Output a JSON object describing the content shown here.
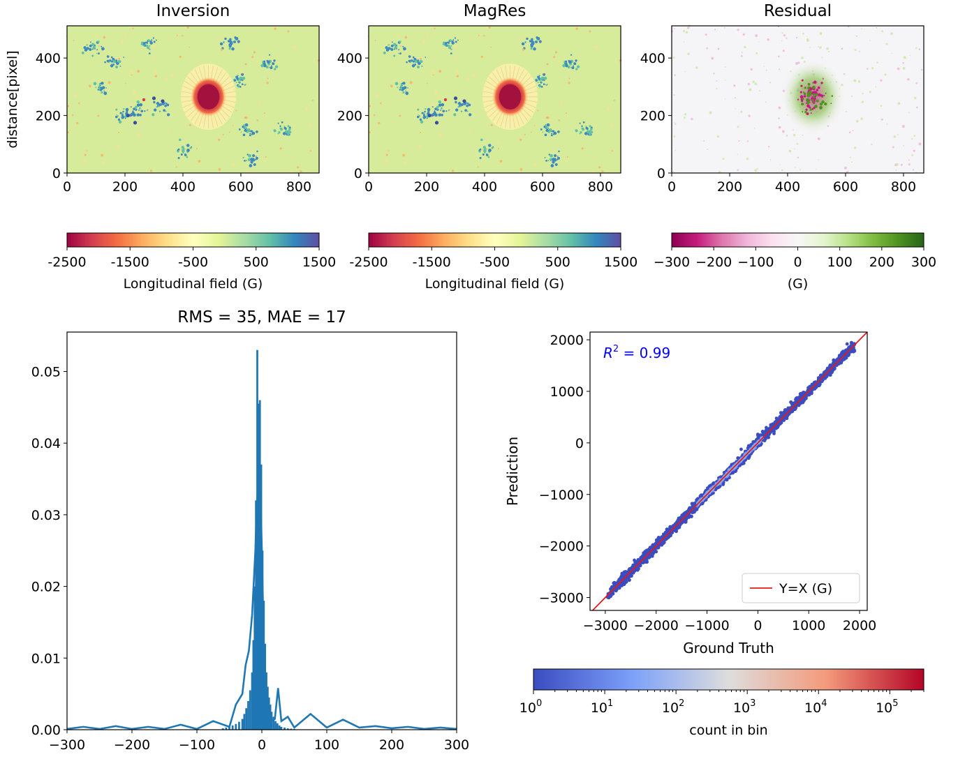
{
  "chart_data": [
    {
      "type": "heatmap",
      "title": "Inversion",
      "ylabel": "distance[pixel]",
      "xlim": [
        0,
        870
      ],
      "ylim": [
        0,
        512
      ],
      "xticks": [
        0,
        200,
        400,
        600,
        800
      ],
      "yticks": [
        0,
        200,
        400
      ],
      "colormap": "Spectral",
      "colorbar": {
        "label": "Longitudinal field (G)",
        "range": [
          -2500,
          1500
        ],
        "ticks": [
          "-2500",
          "-1500",
          "-500",
          "500",
          "1500"
        ]
      }
    },
    {
      "type": "heatmap",
      "title": "MagRes",
      "xlim": [
        0,
        870
      ],
      "ylim": [
        0,
        512
      ],
      "xticks": [
        0,
        200,
        400,
        600,
        800
      ],
      "yticks": [
        0,
        200,
        400
      ],
      "colormap": "Spectral",
      "colorbar": {
        "label": "Longitudinal field (G)",
        "range": [
          -2500,
          1500
        ],
        "ticks": [
          "-2500",
          "-1500",
          "-500",
          "500",
          "1500"
        ]
      }
    },
    {
      "type": "heatmap",
      "title": "Residual",
      "xlim": [
        0,
        870
      ],
      "ylim": [
        0,
        512
      ],
      "xticks": [
        0,
        200,
        400,
        600,
        800
      ],
      "yticks": [
        0,
        200,
        400
      ],
      "colormap": "PiYG",
      "colorbar": {
        "label": "(G)",
        "range": [
          -300,
          300
        ],
        "ticks": [
          "−300",
          "−200",
          "−100",
          "0",
          "100",
          "200",
          "300"
        ]
      }
    },
    {
      "type": "bar",
      "title": "RMS = 35, MAE = 17",
      "xlim": [
        -300,
        300
      ],
      "ylim": [
        0,
        0.0555
      ],
      "xticks": [
        -300,
        -200,
        -100,
        0,
        100,
        200,
        300
      ],
      "xtick_labels": [
        "−300",
        "−200",
        "−100",
        "0",
        "100",
        "200",
        "300"
      ],
      "yticks": [
        0.0,
        0.01,
        0.02,
        0.03,
        0.04,
        0.05
      ],
      "ytick_labels": [
        "0.00",
        "0.01",
        "0.02",
        "0.03",
        "0.04",
        "0.05"
      ],
      "color": "#1f77b4",
      "histogram": {
        "bin_centers": [
          -60,
          -55,
          -50,
          -45,
          -40,
          -35,
          -30,
          -27,
          -24,
          -21,
          -18,
          -15,
          -13,
          -11,
          -9,
          -7,
          -5,
          -3,
          -1,
          1,
          3,
          5,
          7,
          9,
          11,
          13,
          15,
          18,
          21,
          24,
          27,
          30,
          35,
          40,
          45,
          50
        ],
        "values": [
          0.0002,
          0.0003,
          0.0004,
          0.0006,
          0.0008,
          0.0011,
          0.0015,
          0.0022,
          0.003,
          0.004,
          0.0055,
          0.008,
          0.0125,
          0.02,
          0.032,
          0.053,
          0.0455,
          0.046,
          0.037,
          0.025,
          0.018,
          0.012,
          0.008,
          0.006,
          0.0045,
          0.0035,
          0.0025,
          0.0018,
          0.0012,
          0.0009,
          0.0006,
          0.0004,
          0.0003,
          0.0002,
          0.00015,
          0.0001
        ]
      },
      "line": {
        "x": [
          -300,
          -275,
          -250,
          -225,
          -200,
          -175,
          -150,
          -125,
          -100,
          -75,
          -50,
          -40,
          -30,
          -25,
          -20,
          -15,
          -10,
          -8,
          -5,
          -3,
          0,
          3,
          5,
          8,
          10,
          15,
          20,
          25,
          30,
          40,
          50,
          75,
          100,
          125,
          150,
          175,
          200,
          225,
          250,
          275,
          300
        ],
        "y": [
          0.0001,
          0.0004,
          0.0001,
          0.0005,
          0.0001,
          0.0004,
          0.0001,
          0.0007,
          0.0001,
          0.0012,
          0.0004,
          0.0035,
          0.005,
          0.009,
          0.011,
          0.016,
          0.025,
          0.031,
          0.036,
          0.037,
          0.025,
          0.012,
          0.006,
          0.004,
          0.0015,
          0.0012,
          0.0015,
          0.0058,
          0.0012,
          0.0018,
          0.0003,
          0.0022,
          0.0003,
          0.0014,
          0.0003,
          0.0005,
          0.0002,
          0.0004,
          0.0001,
          0.0003,
          0.0001
        ]
      }
    },
    {
      "type": "scatter",
      "xlabel": "Ground Truth",
      "ylabel": "Prediction",
      "xlim": [
        -3300,
        2150
      ],
      "ylim": [
        -3250,
        2150
      ],
      "xticks": [
        -3000,
        -2000,
        -1000,
        0,
        1000,
        2000
      ],
      "xtick_labels": [
        "−3000",
        "−2000",
        "−1000",
        "0",
        "1000",
        "2000"
      ],
      "yticks": [
        -3000,
        -2000,
        -1000,
        0,
        1000,
        2000
      ],
      "ytick_labels": [
        "−3000",
        "−2000",
        "−1000",
        "0",
        "1000",
        "2000"
      ],
      "annotation": {
        "prefix": "R",
        "sup": "2",
        "text": " = 0.99",
        "color": "#0000ff"
      },
      "legend": {
        "label": "Y=X (G)",
        "color": "#e41a1c",
        "position": "lower-right"
      },
      "reference_line": {
        "slope": 1,
        "intercept": 0
      },
      "point_band": {
        "x_range": [
          -2950,
          1900
        ],
        "point_color": "#3b4cc0"
      },
      "colorbar": {
        "label": "count in bin",
        "scale": "log",
        "range": [
          1,
          300000
        ],
        "colormap": "coolwarm",
        "ticks": [
          1,
          10,
          100,
          1000,
          10000,
          100000
        ]
      }
    }
  ]
}
